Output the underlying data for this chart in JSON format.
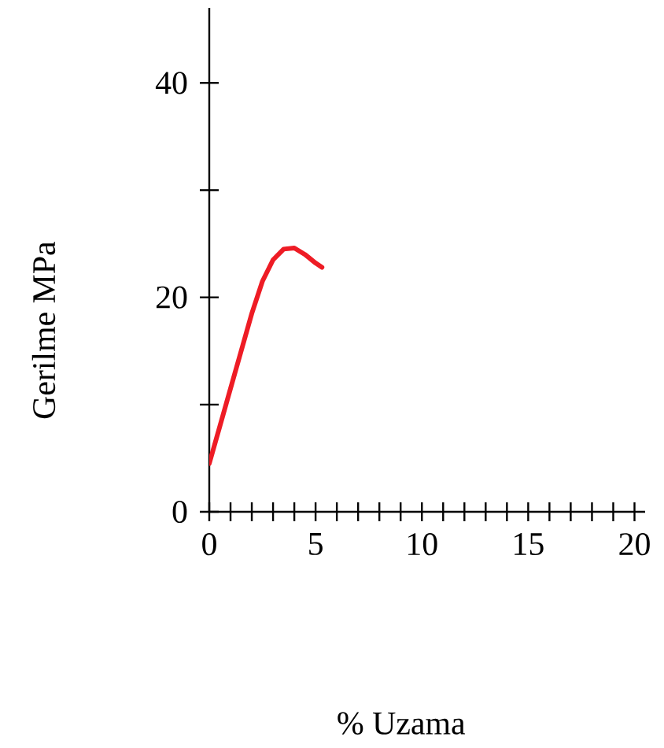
{
  "chart_data": {
    "type": "line",
    "xlabel": "% Uzama",
    "ylabel": "Gerilme MPa",
    "series": [
      {
        "color": "#ee1c25",
        "x": [
          0,
          0.5,
          1,
          1.5,
          2,
          2.5,
          3,
          3.5,
          4,
          4.5,
          5,
          5.3
        ],
        "values": [
          4.5,
          8,
          11.5,
          15,
          18.5,
          21.5,
          23.5,
          24.5,
          24.6,
          24,
          23.2,
          22.8
        ]
      }
    ],
    "xlim": [
      0,
      20.5
    ],
    "ylim": [
      0,
      47
    ],
    "xticks": [
      0,
      {
        "value": 1,
        "label": null
      },
      {
        "value": 2,
        "label": null
      },
      {
        "value": 3,
        "label": null
      },
      {
        "value": 4,
        "label": null
      },
      5,
      {
        "value": 6,
        "label": null
      },
      {
        "value": 7,
        "label": null
      },
      {
        "value": 8,
        "label": null
      },
      {
        "value": 9,
        "label": null
      },
      10,
      {
        "value": 11,
        "label": null
      },
      {
        "value": 12,
        "label": null
      },
      {
        "value": 13,
        "label": null
      },
      {
        "value": 14,
        "label": null
      },
      15,
      {
        "value": 16,
        "label": null
      },
      {
        "value": 17,
        "label": null
      },
      {
        "value": 18,
        "label": null
      },
      {
        "value": 19,
        "label": null
      },
      20
    ],
    "yticks": [
      0,
      {
        "value": 10,
        "label": null
      },
      20,
      {
        "value": 30,
        "label": null
      },
      40
    ],
    "grid": false,
    "marker": "none",
    "line_style": "solid"
  }
}
